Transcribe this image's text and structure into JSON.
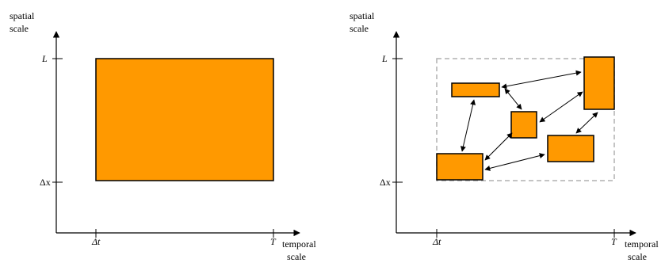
{
  "left_panel": {
    "y_axis_label_line1": "spatial",
    "y_axis_label_line2": "scale",
    "x_axis_label_line1": "temporal",
    "x_axis_label_line2": "scale",
    "y_tick_top": "L",
    "y_tick_bottom": "Δx",
    "x_tick_left": "Δt",
    "x_tick_right": "T"
  },
  "right_panel": {
    "y_axis_label_line1": "spatial",
    "y_axis_label_line2": "scale",
    "x_axis_label_line1": "temporal",
    "x_axis_label_line2": "scale",
    "y_tick_top": "L",
    "y_tick_bottom": "Δx",
    "x_tick_left": "Δt",
    "x_tick_right": "T"
  },
  "colors": {
    "box_fill": "#ff9900",
    "box_stroke": "#000000",
    "dashed_boundary": "#b0b0b0",
    "axis": "#000000"
  }
}
